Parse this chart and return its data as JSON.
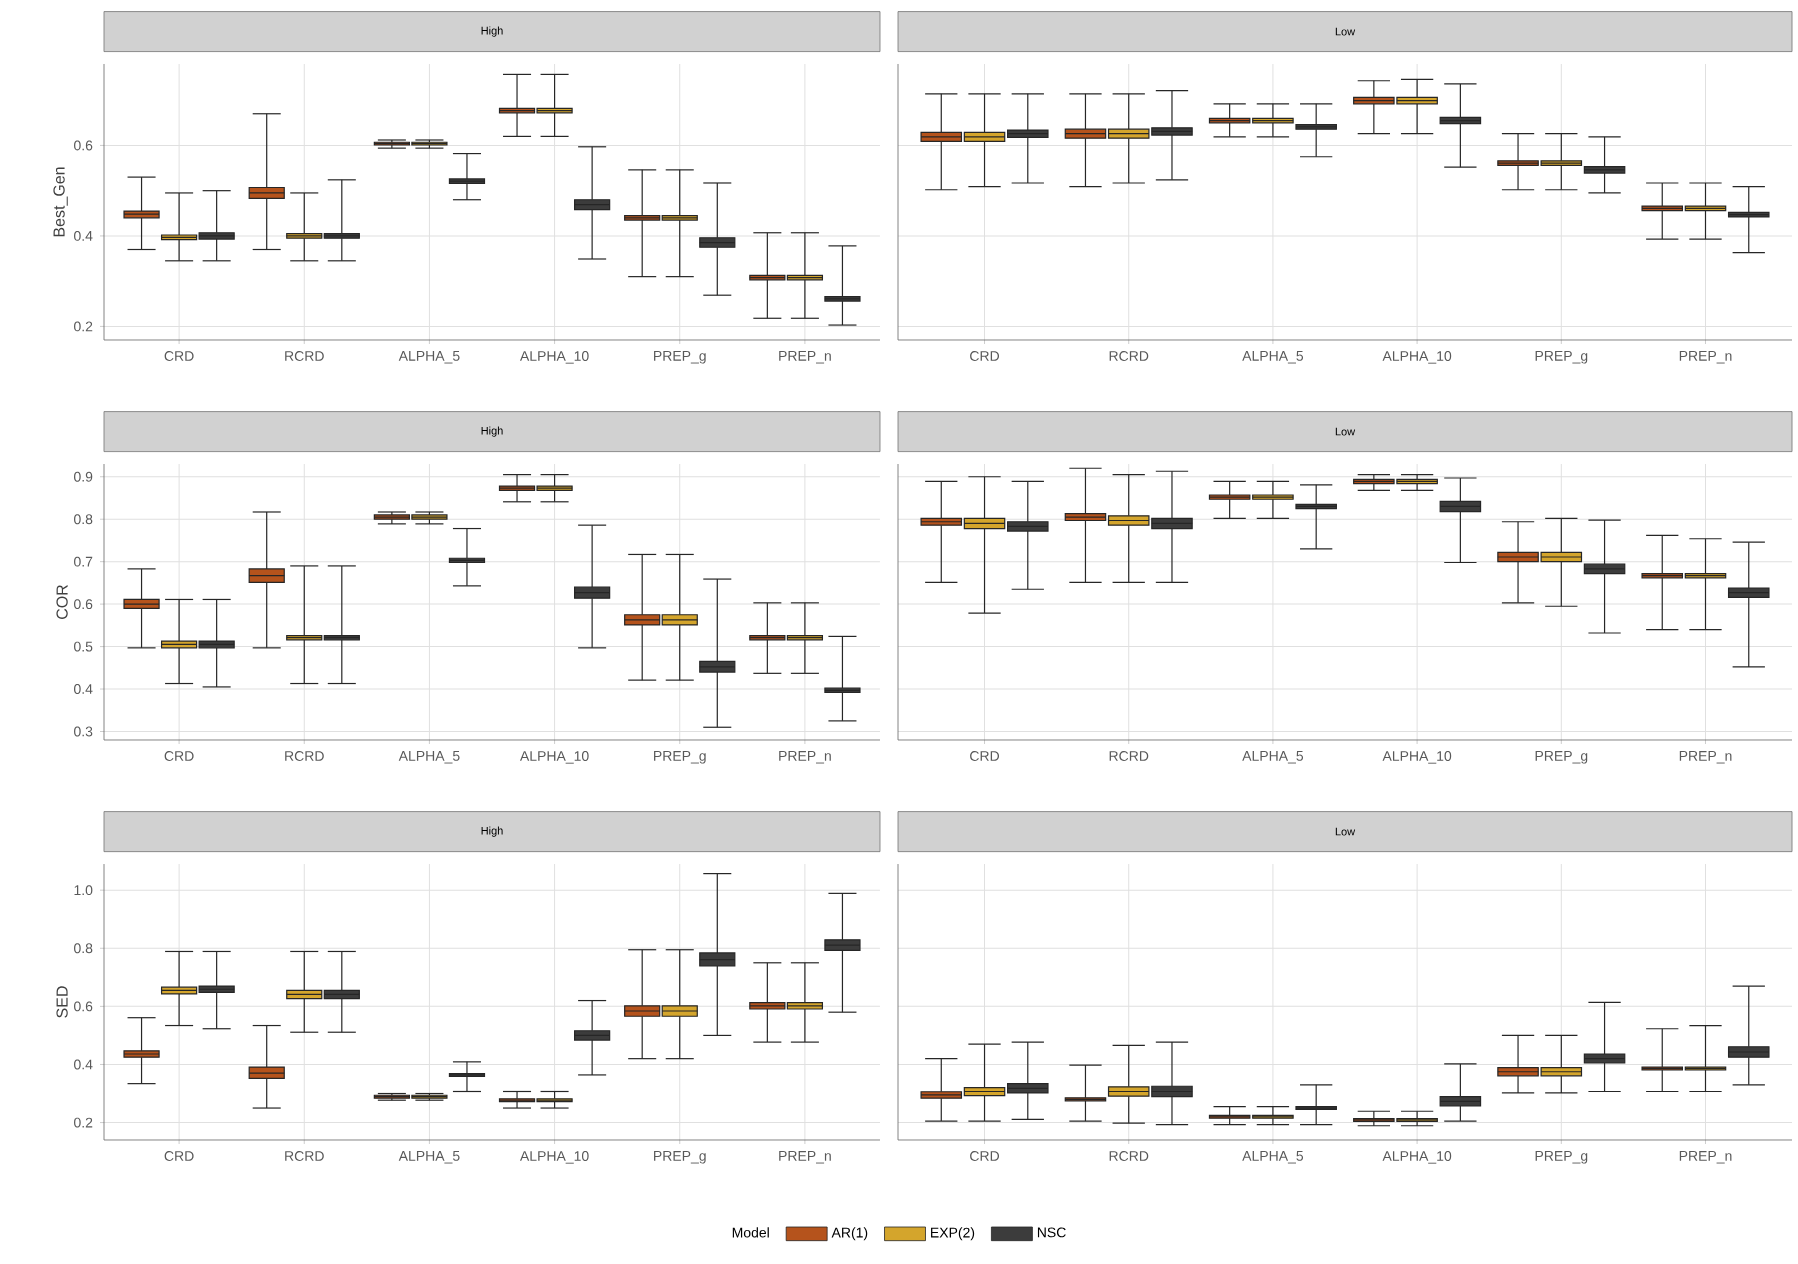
{
  "chart_data": [
    {
      "type": "box",
      "title": "High",
      "ylabel": "Best_Gen",
      "categories": [
        "CRD",
        "RCRD",
        "ALPHA_5",
        "ALPHA_10",
        "PREP_g",
        "PREP_n"
      ],
      "ylim": [
        0.17,
        0.78
      ],
      "yticks": [
        0.2,
        0.4,
        0.6
      ],
      "grid": true,
      "series": [
        {
          "color": "#b5531c",
          "boxes": [
            {
              "low": 0.37,
              "q1": 0.44,
              "median": 0.448,
              "q3": 0.455,
              "high": 0.53
            },
            {
              "low": 0.37,
              "q1": 0.483,
              "median": 0.495,
              "q3": 0.507,
              "high": 0.67
            },
            {
              "low": 0.594,
              "q1": 0.601,
              "median": 0.604,
              "q3": 0.607,
              "high": 0.612
            },
            {
              "low": 0.62,
              "q1": 0.672,
              "median": 0.677,
              "q3": 0.682,
              "high": 0.757
            },
            {
              "low": 0.31,
              "q1": 0.435,
              "median": 0.44,
              "q3": 0.445,
              "high": 0.546
            },
            {
              "low": 0.218,
              "q1": 0.303,
              "median": 0.308,
              "q3": 0.313,
              "high": 0.407
            }
          ]
        },
        {
          "color": "#d4a52c",
          "boxes": [
            {
              "low": 0.345,
              "q1": 0.392,
              "median": 0.397,
              "q3": 0.402,
              "high": 0.495
            },
            {
              "low": 0.345,
              "q1": 0.395,
              "median": 0.4,
              "q3": 0.405,
              "high": 0.495
            },
            {
              "low": 0.594,
              "q1": 0.601,
              "median": 0.604,
              "q3": 0.607,
              "high": 0.612
            },
            {
              "low": 0.62,
              "q1": 0.672,
              "median": 0.677,
              "q3": 0.682,
              "high": 0.757
            },
            {
              "low": 0.31,
              "q1": 0.435,
              "median": 0.44,
              "q3": 0.445,
              "high": 0.546
            },
            {
              "low": 0.218,
              "q1": 0.303,
              "median": 0.308,
              "q3": 0.313,
              "high": 0.407
            }
          ]
        },
        {
          "color": "#3c3c3c",
          "boxes": [
            {
              "low": 0.345,
              "q1": 0.393,
              "median": 0.4,
              "q3": 0.407,
              "high": 0.5
            },
            {
              "low": 0.345,
              "q1": 0.395,
              "median": 0.4,
              "q3": 0.405,
              "high": 0.524
            },
            {
              "low": 0.48,
              "q1": 0.516,
              "median": 0.521,
              "q3": 0.526,
              "high": 0.582
            },
            {
              "low": 0.349,
              "q1": 0.458,
              "median": 0.469,
              "q3": 0.48,
              "high": 0.597
            },
            {
              "low": 0.269,
              "q1": 0.375,
              "median": 0.385,
              "q3": 0.396,
              "high": 0.517
            },
            {
              "low": 0.203,
              "q1": 0.256,
              "median": 0.261,
              "q3": 0.266,
              "high": 0.378
            }
          ]
        }
      ]
    },
    {
      "type": "box",
      "title": "Low",
      "categories": [
        "CRD",
        "RCRD",
        "ALPHA_5",
        "ALPHA_10",
        "PREP_g",
        "PREP_n"
      ],
      "ylim": [
        0.17,
        0.78
      ],
      "yticks": [
        0.2,
        0.4,
        0.6
      ],
      "grid": true,
      "tick_labels": "x",
      "series": [
        {
          "color": "#b5531c",
          "boxes": [
            {
              "low": 0.502,
              "q1": 0.609,
              "median": 0.619,
              "q3": 0.629,
              "high": 0.714
            },
            {
              "low": 0.509,
              "q1": 0.616,
              "median": 0.626,
              "q3": 0.636,
              "high": 0.714
            },
            {
              "low": 0.619,
              "q1": 0.65,
              "median": 0.655,
              "q3": 0.66,
              "high": 0.692
            },
            {
              "low": 0.626,
              "q1": 0.692,
              "median": 0.699,
              "q3": 0.706,
              "high": 0.743
            },
            {
              "low": 0.502,
              "q1": 0.556,
              "median": 0.561,
              "q3": 0.566,
              "high": 0.626
            },
            {
              "low": 0.393,
              "q1": 0.456,
              "median": 0.461,
              "q3": 0.466,
              "high": 0.517
            }
          ]
        },
        {
          "color": "#d4a52c",
          "boxes": [
            {
              "low": 0.509,
              "q1": 0.609,
              "median": 0.619,
              "q3": 0.629,
              "high": 0.714
            },
            {
              "low": 0.517,
              "q1": 0.616,
              "median": 0.626,
              "q3": 0.636,
              "high": 0.714
            },
            {
              "low": 0.619,
              "q1": 0.65,
              "median": 0.655,
              "q3": 0.66,
              "high": 0.692
            },
            {
              "low": 0.626,
              "q1": 0.692,
              "median": 0.699,
              "q3": 0.706,
              "high": 0.746
            },
            {
              "low": 0.502,
              "q1": 0.556,
              "median": 0.561,
              "q3": 0.566,
              "high": 0.626
            },
            {
              "low": 0.393,
              "q1": 0.456,
              "median": 0.461,
              "q3": 0.466,
              "high": 0.517
            }
          ]
        },
        {
          "color": "#3c3c3c",
          "boxes": [
            {
              "low": 0.517,
              "q1": 0.618,
              "median": 0.626,
              "q3": 0.634,
              "high": 0.714
            },
            {
              "low": 0.524,
              "q1": 0.623,
              "median": 0.631,
              "q3": 0.639,
              "high": 0.721
            },
            {
              "low": 0.575,
              "q1": 0.636,
              "median": 0.641,
              "q3": 0.646,
              "high": 0.692
            },
            {
              "low": 0.552,
              "q1": 0.648,
              "median": 0.655,
              "q3": 0.662,
              "high": 0.736
            },
            {
              "low": 0.495,
              "q1": 0.539,
              "median": 0.546,
              "q3": 0.553,
              "high": 0.619
            },
            {
              "low": 0.363,
              "q1": 0.442,
              "median": 0.447,
              "q3": 0.452,
              "high": 0.509
            }
          ]
        }
      ]
    },
    {
      "type": "box",
      "title": "High",
      "ylabel": "COR",
      "categories": [
        "CRD",
        "RCRD",
        "ALPHA_5",
        "ALPHA_10",
        "PREP_g",
        "PREP_n"
      ],
      "ylim": [
        0.28,
        0.93
      ],
      "yticks": [
        0.3,
        0.4,
        0.5,
        0.6,
        0.7,
        0.8,
        0.9
      ],
      "grid": true,
      "series": [
        {
          "color": "#b5531c",
          "boxes": [
            {
              "low": 0.497,
              "q1": 0.59,
              "median": 0.6,
              "q3": 0.611,
              "high": 0.683
            },
            {
              "low": 0.497,
              "q1": 0.651,
              "median": 0.667,
              "q3": 0.683,
              "high": 0.817
            },
            {
              "low": 0.789,
              "q1": 0.8,
              "median": 0.805,
              "q3": 0.81,
              "high": 0.817
            },
            {
              "low": 0.841,
              "q1": 0.868,
              "median": 0.873,
              "q3": 0.878,
              "high": 0.905
            },
            {
              "low": 0.421,
              "q1": 0.551,
              "median": 0.563,
              "q3": 0.575,
              "high": 0.717
            },
            {
              "low": 0.437,
              "q1": 0.516,
              "median": 0.521,
              "q3": 0.526,
              "high": 0.603
            }
          ]
        },
        {
          "color": "#d4a52c",
          "boxes": [
            {
              "low": 0.413,
              "q1": 0.497,
              "median": 0.505,
              "q3": 0.513,
              "high": 0.611
            },
            {
              "low": 0.413,
              "q1": 0.516,
              "median": 0.521,
              "q3": 0.526,
              "high": 0.69
            },
            {
              "low": 0.789,
              "q1": 0.8,
              "median": 0.805,
              "q3": 0.81,
              "high": 0.817
            },
            {
              "low": 0.841,
              "q1": 0.868,
              "median": 0.873,
              "q3": 0.878,
              "high": 0.905
            },
            {
              "low": 0.421,
              "q1": 0.551,
              "median": 0.563,
              "q3": 0.575,
              "high": 0.717
            },
            {
              "low": 0.437,
              "q1": 0.516,
              "median": 0.521,
              "q3": 0.526,
              "high": 0.603
            }
          ]
        },
        {
          "color": "#3c3c3c",
          "boxes": [
            {
              "low": 0.405,
              "q1": 0.497,
              "median": 0.505,
              "q3": 0.513,
              "high": 0.611
            },
            {
              "low": 0.413,
              "q1": 0.516,
              "median": 0.521,
              "q3": 0.526,
              "high": 0.69
            },
            {
              "low": 0.643,
              "q1": 0.698,
              "median": 0.703,
              "q3": 0.708,
              "high": 0.778
            },
            {
              "low": 0.497,
              "q1": 0.614,
              "median": 0.627,
              "q3": 0.64,
              "high": 0.786
            },
            {
              "low": 0.31,
              "q1": 0.44,
              "median": 0.452,
              "q3": 0.465,
              "high": 0.659
            },
            {
              "low": 0.325,
              "q1": 0.392,
              "median": 0.397,
              "q3": 0.402,
              "high": 0.524
            }
          ]
        }
      ]
    },
    {
      "type": "box",
      "title": "Low",
      "categories": [
        "CRD",
        "RCRD",
        "ALPHA_5",
        "ALPHA_10",
        "PREP_g",
        "PREP_n"
      ],
      "ylim": [
        0.28,
        0.93
      ],
      "yticks": [
        0.3,
        0.4,
        0.5,
        0.6,
        0.7,
        0.8,
        0.9
      ],
      "grid": true,
      "tick_labels": "x",
      "series": [
        {
          "color": "#b5531c",
          "boxes": [
            {
              "low": 0.651,
              "q1": 0.786,
              "median": 0.794,
              "q3": 0.802,
              "high": 0.889
            },
            {
              "low": 0.651,
              "q1": 0.797,
              "median": 0.805,
              "q3": 0.813,
              "high": 0.92
            },
            {
              "low": 0.802,
              "q1": 0.847,
              "median": 0.852,
              "q3": 0.857,
              "high": 0.889
            },
            {
              "low": 0.868,
              "q1": 0.884,
              "median": 0.889,
              "q3": 0.894,
              "high": 0.905
            },
            {
              "low": 0.603,
              "q1": 0.7,
              "median": 0.711,
              "q3": 0.722,
              "high": 0.794
            },
            {
              "low": 0.54,
              "q1": 0.662,
              "median": 0.667,
              "q3": 0.672,
              "high": 0.762
            }
          ]
        },
        {
          "color": "#d4a52c",
          "boxes": [
            {
              "low": 0.579,
              "q1": 0.778,
              "median": 0.79,
              "q3": 0.802,
              "high": 0.9
            },
            {
              "low": 0.651,
              "q1": 0.786,
              "median": 0.797,
              "q3": 0.808,
              "high": 0.905
            },
            {
              "low": 0.802,
              "q1": 0.847,
              "median": 0.852,
              "q3": 0.857,
              "high": 0.889
            },
            {
              "low": 0.868,
              "q1": 0.884,
              "median": 0.889,
              "q3": 0.894,
              "high": 0.905
            },
            {
              "low": 0.595,
              "q1": 0.7,
              "median": 0.711,
              "q3": 0.722,
              "high": 0.802
            },
            {
              "low": 0.54,
              "q1": 0.662,
              "median": 0.667,
              "q3": 0.672,
              "high": 0.754
            }
          ]
        },
        {
          "color": "#3c3c3c",
          "boxes": [
            {
              "low": 0.635,
              "q1": 0.772,
              "median": 0.783,
              "q3": 0.794,
              "high": 0.889
            },
            {
              "low": 0.651,
              "q1": 0.778,
              "median": 0.79,
              "q3": 0.802,
              "high": 0.913
            },
            {
              "low": 0.73,
              "q1": 0.825,
              "median": 0.83,
              "q3": 0.835,
              "high": 0.881
            },
            {
              "low": 0.698,
              "q1": 0.818,
              "median": 0.83,
              "q3": 0.842,
              "high": 0.897
            },
            {
              "low": 0.532,
              "q1": 0.672,
              "median": 0.683,
              "q3": 0.694,
              "high": 0.798
            },
            {
              "low": 0.452,
              "q1": 0.616,
              "median": 0.627,
              "q3": 0.638,
              "high": 0.746
            }
          ]
        }
      ]
    },
    {
      "type": "box",
      "title": "High",
      "ylabel": "SED",
      "categories": [
        "CRD",
        "RCRD",
        "ALPHA_5",
        "ALPHA_10",
        "PREP_g",
        "PREP_n"
      ],
      "ylim": [
        0.14,
        1.09
      ],
      "yticks": [
        0.2,
        0.4,
        0.6,
        0.8,
        {
          "value": 1,
          "label": "1.0"
        }
      ],
      "grid": true,
      "legend": "bottom",
      "legend_title": "Model",
      "series": [
        {
          "name": "AR(1)",
          "color": "#b5531c",
          "boxes": [
            {
              "low": 0.334,
              "q1": 0.425,
              "median": 0.436,
              "q3": 0.447,
              "high": 0.561
            },
            {
              "low": 0.25,
              "q1": 0.352,
              "median": 0.37,
              "q3": 0.391,
              "high": 0.534
            },
            {
              "low": 0.277,
              "q1": 0.284,
              "median": 0.289,
              "q3": 0.294,
              "high": 0.3
            },
            {
              "low": 0.25,
              "q1": 0.272,
              "median": 0.277,
              "q3": 0.282,
              "high": 0.307
            },
            {
              "low": 0.42,
              "q1": 0.566,
              "median": 0.584,
              "q3": 0.602,
              "high": 0.795
            },
            {
              "low": 0.477,
              "q1": 0.591,
              "median": 0.602,
              "q3": 0.613,
              "high": 0.75
            }
          ]
        },
        {
          "name": "EXP(2)",
          "color": "#d4a52c",
          "boxes": [
            {
              "low": 0.534,
              "q1": 0.643,
              "median": 0.655,
              "q3": 0.666,
              "high": 0.789
            },
            {
              "low": 0.511,
              "q1": 0.627,
              "median": 0.641,
              "q3": 0.655,
              "high": 0.789
            },
            {
              "low": 0.277,
              "q1": 0.284,
              "median": 0.289,
              "q3": 0.294,
              "high": 0.3
            },
            {
              "low": 0.25,
              "q1": 0.272,
              "median": 0.277,
              "q3": 0.282,
              "high": 0.307
            },
            {
              "low": 0.42,
              "q1": 0.566,
              "median": 0.584,
              "q3": 0.602,
              "high": 0.795
            },
            {
              "low": 0.477,
              "q1": 0.591,
              "median": 0.602,
              "q3": 0.613,
              "high": 0.75
            }
          ]
        },
        {
          "name": "NSC",
          "color": "#3c3c3c",
          "boxes": [
            {
              "low": 0.523,
              "q1": 0.648,
              "median": 0.659,
              "q3": 0.67,
              "high": 0.789
            },
            {
              "low": 0.511,
              "q1": 0.627,
              "median": 0.641,
              "q3": 0.655,
              "high": 0.789
            },
            {
              "low": 0.307,
              "q1": 0.359,
              "median": 0.364,
              "q3": 0.369,
              "high": 0.409
            },
            {
              "low": 0.364,
              "q1": 0.484,
              "median": 0.5,
              "q3": 0.516,
              "high": 0.62
            },
            {
              "low": 0.5,
              "q1": 0.739,
              "median": 0.761,
              "q3": 0.784,
              "high": 1.057
            },
            {
              "low": 0.58,
              "q1": 0.793,
              "median": 0.811,
              "q3": 0.829,
              "high": 0.989
            }
          ]
        }
      ]
    },
    {
      "type": "box",
      "title": "Low",
      "categories": [
        "CRD",
        "RCRD",
        "ALPHA_5",
        "ALPHA_10",
        "PREP_g",
        "PREP_n"
      ],
      "ylim": [
        0.14,
        1.09
      ],
      "yticks": [
        0.2,
        0.4,
        0.6,
        0.8,
        1
      ],
      "grid": true,
      "tick_labels": "x",
      "series": [
        {
          "color": "#b5531c",
          "boxes": [
            {
              "low": 0.205,
              "q1": 0.284,
              "median": 0.295,
              "q3": 0.306,
              "high": 0.42
            },
            {
              "low": 0.205,
              "q1": 0.275,
              "median": 0.28,
              "q3": 0.285,
              "high": 0.398
            },
            {
              "low": 0.193,
              "q1": 0.215,
              "median": 0.22,
              "q3": 0.225,
              "high": 0.255
            },
            {
              "low": 0.189,
              "q1": 0.204,
              "median": 0.209,
              "q3": 0.214,
              "high": 0.239
            },
            {
              "low": 0.302,
              "q1": 0.361,
              "median": 0.375,
              "q3": 0.389,
              "high": 0.5
            },
            {
              "low": 0.307,
              "q1": 0.381,
              "median": 0.386,
              "q3": 0.391,
              "high": 0.523
            }
          ]
        },
        {
          "color": "#d4a52c",
          "boxes": [
            {
              "low": 0.205,
              "q1": 0.293,
              "median": 0.307,
              "q3": 0.32,
              "high": 0.47
            },
            {
              "low": 0.198,
              "q1": 0.291,
              "median": 0.307,
              "q3": 0.323,
              "high": 0.466
            },
            {
              "low": 0.193,
              "q1": 0.215,
              "median": 0.22,
              "q3": 0.225,
              "high": 0.255
            },
            {
              "low": 0.189,
              "q1": 0.204,
              "median": 0.209,
              "q3": 0.214,
              "high": 0.239
            },
            {
              "low": 0.302,
              "q1": 0.361,
              "median": 0.375,
              "q3": 0.389,
              "high": 0.5
            },
            {
              "low": 0.307,
              "q1": 0.381,
              "median": 0.386,
              "q3": 0.391,
              "high": 0.534
            }
          ]
        },
        {
          "color": "#3c3c3c",
          "boxes": [
            {
              "low": 0.211,
              "q1": 0.302,
              "median": 0.318,
              "q3": 0.334,
              "high": 0.477
            },
            {
              "low": 0.193,
              "q1": 0.289,
              "median": 0.307,
              "q3": 0.325,
              "high": 0.477
            },
            {
              "low": 0.193,
              "q1": 0.245,
              "median": 0.25,
              "q3": 0.255,
              "high": 0.33
            },
            {
              "low": 0.205,
              "q1": 0.257,
              "median": 0.273,
              "q3": 0.289,
              "high": 0.402
            },
            {
              "low": 0.307,
              "q1": 0.405,
              "median": 0.42,
              "q3": 0.436,
              "high": 0.614
            },
            {
              "low": 0.33,
              "q1": 0.425,
              "median": 0.443,
              "q3": 0.461,
              "high": 0.67
            }
          ]
        }
      ]
    }
  ]
}
